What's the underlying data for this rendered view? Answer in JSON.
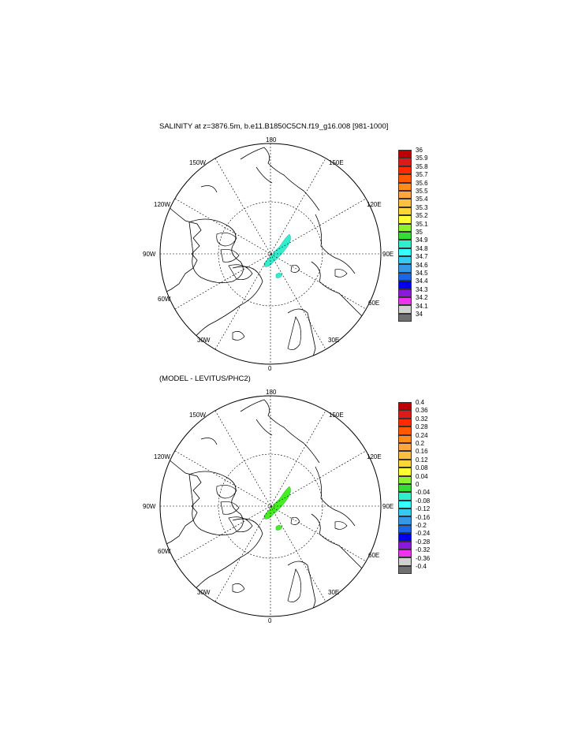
{
  "panels": [
    {
      "title": "SALINITY at z=3876.5m, b.e11.B1850C5CN.f19_g16.008 [981-1000]",
      "field_color": "#33eecc",
      "field_dark": "#1ab5a2",
      "colorbar_labels": [
        "36",
        "35.9",
        "35.8",
        "35.7",
        "35.6",
        "35.5",
        "35.4",
        "35.3",
        "35.2",
        "35.1",
        "35",
        "34.9",
        "34.8",
        "34.7",
        "34.6",
        "34.5",
        "34.4",
        "34.3",
        "34.2",
        "34.1",
        "34"
      ]
    },
    {
      "title": "(MODEL - LEVITUS/PHC2)",
      "field_color": "#44ee22",
      "field_dark": "#2bb82a",
      "colorbar_labels": [
        "0.4",
        "0.36",
        "0.32",
        "0.28",
        "0.24",
        "0.2",
        "0.16",
        "0.12",
        "0.08",
        "0.04",
        "0",
        "-0.04",
        "-0.08",
        "-0.12",
        "-0.16",
        "-0.2",
        "-0.24",
        "-0.28",
        "-0.32",
        "-0.36",
        "-0.4"
      ]
    }
  ],
  "map_labels": {
    "top": "180",
    "bottom": "0",
    "left": "90W",
    "right": "90E",
    "nw1": "150W",
    "nw2": "120W",
    "sw1": "60W",
    "sw2": "30W",
    "ne1": "150E",
    "ne2": "120E",
    "se1": "60E",
    "se2": "30E"
  },
  "colorbar_colors": [
    "#c00000",
    "#dd1a1a",
    "#ff2a00",
    "#ff5a00",
    "#ff8c1a",
    "#ffa640",
    "#ffbf40",
    "#ffd633",
    "#ffff33",
    "#8cf233",
    "#33dd33",
    "#33eecc",
    "#33ffff",
    "#33ccf0",
    "#3399e6",
    "#1a66e6",
    "#0000ee",
    "#8a1ad9",
    "#ee33ee",
    "#d0d0d0",
    "#707070"
  ]
}
